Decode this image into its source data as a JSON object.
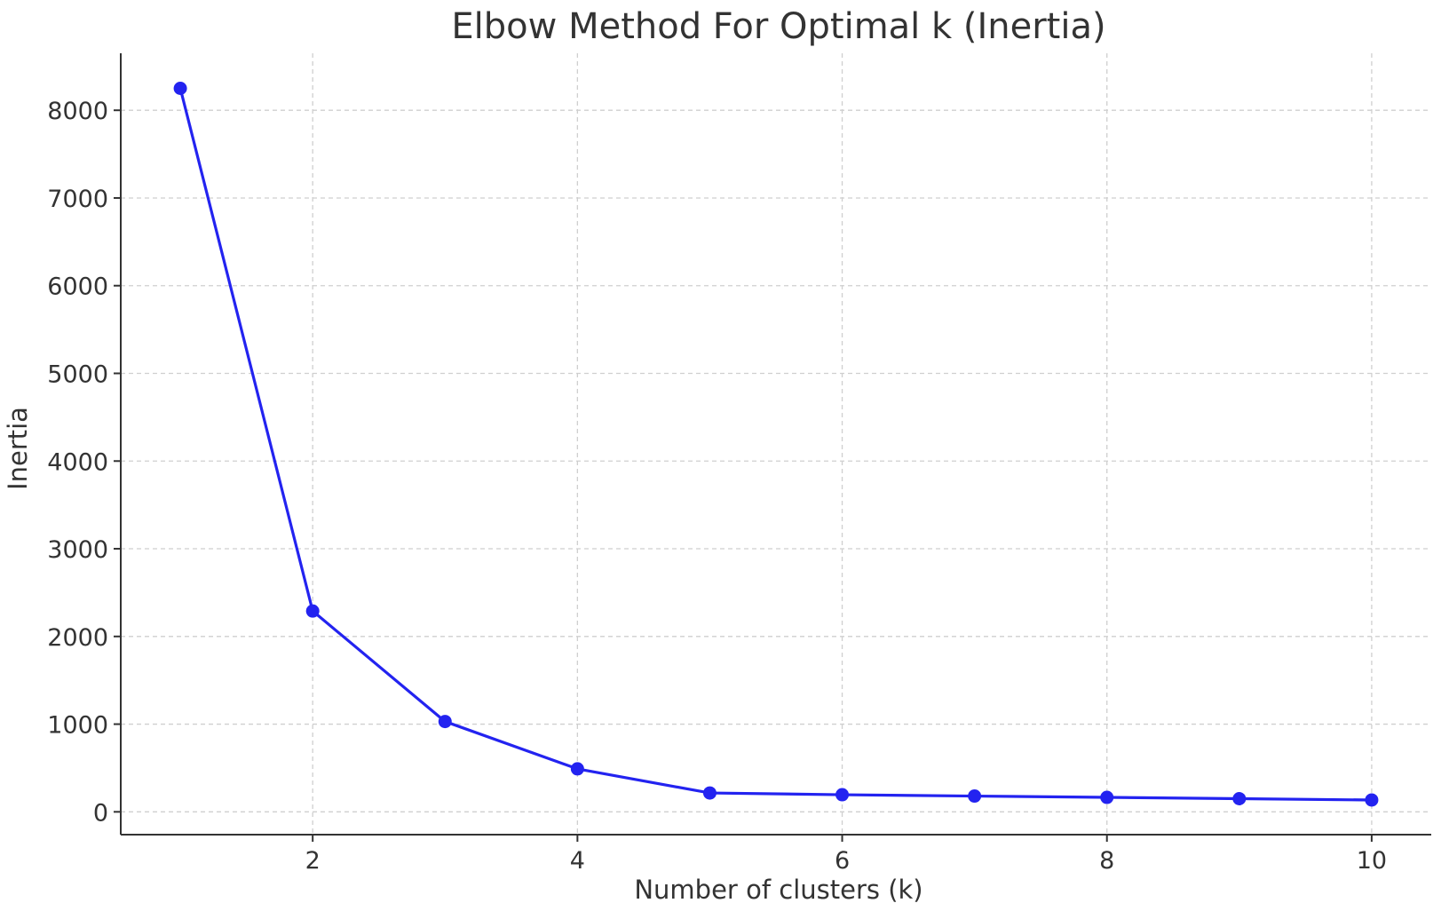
{
  "chart_data": {
    "type": "line",
    "title": "Elbow Method For Optimal k (Inertia)",
    "xlabel": "Number of clusters (k)",
    "ylabel": "Inertia",
    "x": [
      1,
      2,
      3,
      4,
      5,
      6,
      7,
      8,
      9,
      10
    ],
    "series": [
      {
        "values": [
          8250,
          2290,
          1030,
          490,
          215,
          195,
          180,
          165,
          150,
          135
        ]
      }
    ],
    "xlim": [
      0.55,
      10.45
    ],
    "ylim": [
      -260,
      8650
    ],
    "xticks": [
      2,
      4,
      6,
      8,
      10
    ],
    "xtick_labels": [
      "2",
      "4",
      "6",
      "8",
      "10"
    ],
    "yticks": [
      0,
      1000,
      2000,
      3000,
      4000,
      5000,
      6000,
      7000,
      8000
    ],
    "ytick_labels": [
      "0",
      "1000",
      "2000",
      "3000",
      "4000",
      "5000",
      "6000",
      "7000",
      "8000"
    ],
    "grid": true,
    "line_color": "#2323f0",
    "marker": "circle"
  }
}
